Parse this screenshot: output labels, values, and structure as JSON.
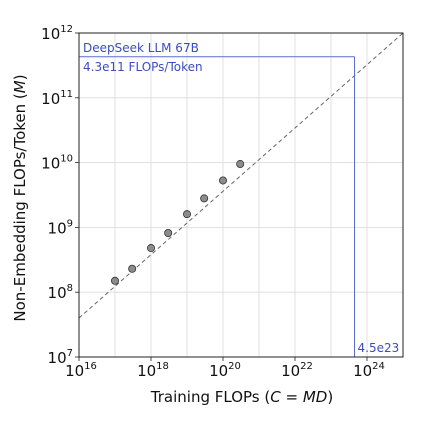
{
  "chart_data": {
    "type": "scatter",
    "xlabel": {
      "prefix": "Training FLOPs (",
      "var1": "C",
      "eq": " = ",
      "var2": "MD",
      "suffix": ")"
    },
    "ylabel": {
      "prefix": "Non-Embedding FLOPs/Token (",
      "var": "M",
      "suffix": ")"
    },
    "x_scale": "log",
    "y_scale": "log",
    "xlim": [
      1e+16,
      1e+25
    ],
    "ylim": [
      10000000.0,
      1000000000000.0
    ],
    "x_ticks": [
      {
        "value": 1e+16,
        "base": "10",
        "exp": "16"
      },
      {
        "value": 1e+18,
        "base": "10",
        "exp": "18"
      },
      {
        "value": 1e+20,
        "base": "10",
        "exp": "20"
      },
      {
        "value": 1e+22,
        "base": "10",
        "exp": "22"
      },
      {
        "value": 1e+24,
        "base": "10",
        "exp": "24"
      }
    ],
    "y_ticks": [
      {
        "value": 10000000.0,
        "base": "10",
        "exp": "7"
      },
      {
        "value": 100000000.0,
        "base": "10",
        "exp": "8"
      },
      {
        "value": 1000000000.0,
        "base": "10",
        "exp": "9"
      },
      {
        "value": 10000000000.0,
        "base": "10",
        "exp": "10"
      },
      {
        "value": 100000000000.0,
        "base": "10",
        "exp": "11"
      },
      {
        "value": 1000000000000.0,
        "base": "10",
        "exp": "12"
      }
    ],
    "grid": true,
    "points": [
      {
        "x": 1e+17,
        "y": 150000000.0
      },
      {
        "x": 3e+17,
        "y": 230000000.0
      },
      {
        "x": 1e+18,
        "y": 480000000.0
      },
      {
        "x": 3e+18,
        "y": 820000000.0
      },
      {
        "x": 1e+19,
        "y": 1600000000.0
      },
      {
        "x": 3e+19,
        "y": 2800000000.0
      },
      {
        "x": 1e+20,
        "y": 5300000000.0
      },
      {
        "x": 3e+20,
        "y": 9500000000.0
      }
    ],
    "fit_line": {
      "start": {
        "x": 1e+16,
        "y": 40000000.0
      },
      "end": {
        "x": 1e+25,
        "y": 1000000000000.0
      }
    },
    "highlight": {
      "x": 4.5e+23,
      "y": 430000000000.0,
      "x_label": "4.5e23",
      "y_label_line1": "DeepSeek LLM 67B",
      "y_label_line2": "4.3e11 FLOPs/Token"
    },
    "colors": {
      "point_fill": "#8c8c8c",
      "point_edge": "#333333",
      "fit_line": "#666666",
      "highlight": "#5b6bd6",
      "grid": "#d9d9d9",
      "axis": "#222222"
    }
  }
}
